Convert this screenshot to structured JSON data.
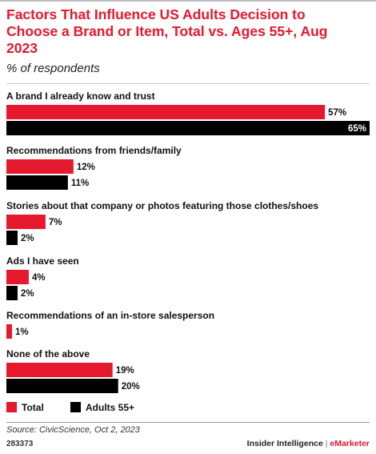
{
  "chart_data": {
    "type": "bar",
    "orientation": "horizontal",
    "title": "Factors That Influence US Adults Decision to Choose a Brand or Item, Total vs. Ages 55+, Aug 2023",
    "subtitle": "% of respondents",
    "value_suffix": "%",
    "categories": [
      "A brand I already know and trust",
      "Recommendations from friends/family",
      "Stories about that company or photos featuring those clothes/shoes",
      "Ads I have seen",
      "Recommendations of an in-store salesperson",
      "None of the above"
    ],
    "series": [
      {
        "name": "Total",
        "color": "#e5182d",
        "values": [
          57,
          12,
          7,
          4,
          1,
          19
        ]
      },
      {
        "name": "Adults 55+",
        "color": "#000000",
        "values": [
          65,
          11,
          2,
          2,
          null,
          20
        ]
      }
    ],
    "xlim": [
      0,
      65
    ],
    "grid": false,
    "legend_position": "bottom-left"
  },
  "footer": {
    "source": "Source: CivicScience, Oct 2, 2023",
    "chart_id": "283373",
    "brand_main": "Insider Intelligence",
    "brand_sep": "|",
    "brand_accent": "eMarketer"
  }
}
